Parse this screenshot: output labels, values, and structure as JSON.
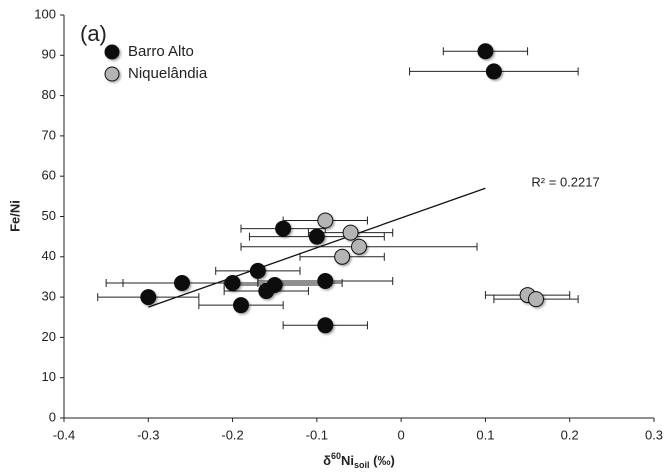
{
  "chart_data": {
    "type": "scatter",
    "panel": "(a)",
    "y_label": "Fe/Ni",
    "x_label": {
      "prefix": "δ",
      "sup": "60",
      "main": "Ni",
      "sub": "soil",
      "suffix": " (‰)"
    },
    "xlim": [
      -0.4,
      0.3
    ],
    "xticks": [
      -0.4,
      -0.3,
      -0.2,
      -0.1,
      0,
      0.1,
      0.2,
      0.3
    ],
    "ylim": [
      0,
      100
    ],
    "yticks": [
      0,
      10,
      20,
      30,
      40,
      50,
      60,
      70,
      80,
      90,
      100
    ],
    "series": [
      {
        "name": "Barro Alto",
        "color": "#111111",
        "x": [
          0.1,
          0.11,
          -0.14,
          -0.1,
          -0.17,
          -0.26,
          -0.2,
          -0.09,
          -0.15,
          -0.16,
          -0.3,
          -0.19,
          -0.09
        ],
        "values": [
          91,
          86,
          47,
          45,
          36.5,
          33.5,
          33.5,
          34,
          33,
          31.5,
          30,
          28,
          23
        ],
        "xerr": [
          0.05,
          0.1,
          0.05,
          0.08,
          0.05,
          0.09,
          0.13,
          0.08,
          0.06,
          0.05,
          0.06,
          0.05,
          0.05
        ]
      },
      {
        "name": "Niquelândia",
        "color": "#b4b4b4",
        "x": [
          -0.09,
          -0.06,
          -0.05,
          -0.07,
          0.15,
          0.16
        ],
        "values": [
          49,
          46,
          42.5,
          40,
          30.5,
          29.5
        ],
        "xerr": [
          0.05,
          0.05,
          0.14,
          0.05,
          0.05,
          0.05
        ]
      }
    ],
    "trendline": {
      "x": [
        -0.3,
        0.1
      ],
      "y": [
        27.5,
        57
      ],
      "label": "R² = 0.2217"
    },
    "legend": "upper left"
  }
}
